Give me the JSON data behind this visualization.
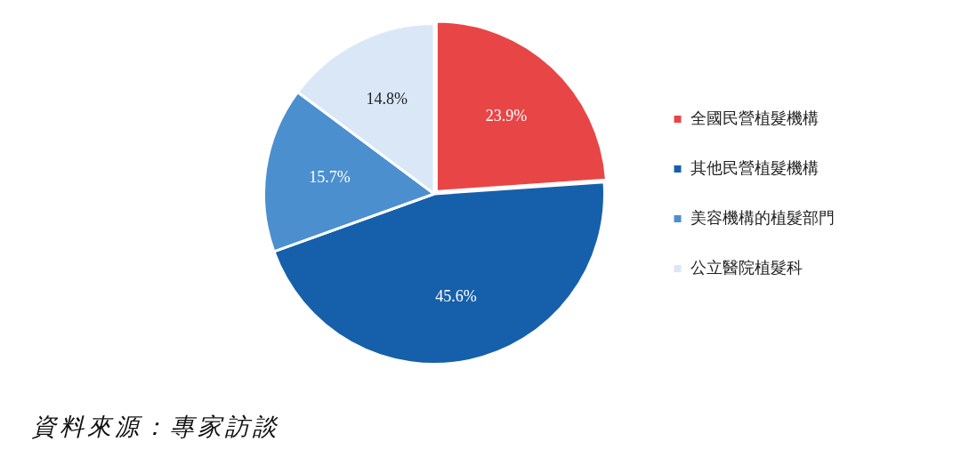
{
  "chart_data": {
    "type": "pie",
    "categories": [
      "全國民營植髮機構",
      "其他民營植髮機構",
      "美容機構的植髮部門",
      "公立醫院植髮科"
    ],
    "values": [
      23.9,
      45.6,
      15.7,
      14.8
    ],
    "colors": [
      "#e84646",
      "#1660ab",
      "#4b8fcf",
      "#d9e7f7"
    ],
    "value_labels": [
      "23.9%",
      "45.6%",
      "15.7%",
      "14.8%"
    ],
    "legend": "right",
    "annotations": [
      "資料來源：專家訪談"
    ]
  }
}
